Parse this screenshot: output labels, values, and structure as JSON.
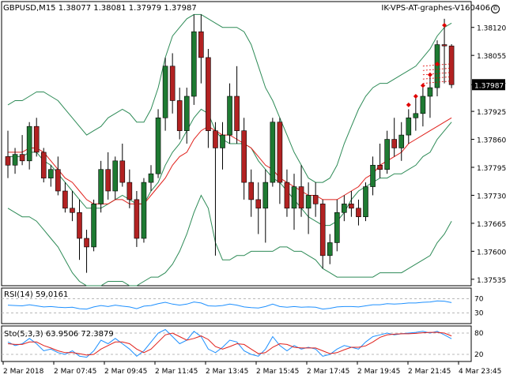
{
  "header": {
    "symbol": "GBPUSD,M15",
    "ohlc": "1.38077 1.38081 1.37979 1.37987",
    "brand": "IK-VPS-AT-graphes-V160406"
  },
  "colors": {
    "bull": "#1e7a32",
    "bear": "#b22222",
    "bollinger": "#2e8b57",
    "ma": "#e0201b",
    "rsi": "#1e90ff",
    "sto_main": "#1e90ff",
    "sto_signal": "#e0201b",
    "grid": "#b8b8b8",
    "marker": "#e00000"
  },
  "chart_data": [
    {
      "type": "candlestick",
      "title": "GBPUSD,M15",
      "price_labels": [
        "1.38120",
        "1.38055",
        "1.37987",
        "1.37925",
        "1.37860",
        "1.37795",
        "1.37730",
        "1.37665",
        "1.37600",
        "1.37535"
      ],
      "current_price": "1.37987",
      "ylim": [
        1.3752,
        1.3818
      ],
      "time_labels": [
        "2 Mar 2018",
        "2 Mar 07:45",
        "2 Mar 09:45",
        "2 Mar 11:45",
        "2 Mar 13:45",
        "2 Mar 15:45",
        "2 Mar 17:45",
        "2 Mar 19:45",
        "2 Mar 21:45",
        "4 Mar 23:45"
      ],
      "candles": [
        {
          "o": 1.3782,
          "h": 1.3788,
          "l": 1.3777,
          "c": 1.378
        },
        {
          "o": 1.378,
          "h": 1.3784,
          "l": 1.3778,
          "c": 1.37825
        },
        {
          "o": 1.37825,
          "h": 1.3787,
          "l": 1.378,
          "c": 1.3781
        },
        {
          "o": 1.3781,
          "h": 1.379,
          "l": 1.3779,
          "c": 1.3789
        },
        {
          "o": 1.3789,
          "h": 1.3791,
          "l": 1.3782,
          "c": 1.3783
        },
        {
          "o": 1.3783,
          "h": 1.3784,
          "l": 1.3776,
          "c": 1.3777
        },
        {
          "o": 1.3777,
          "h": 1.378,
          "l": 1.3775,
          "c": 1.3779
        },
        {
          "o": 1.3779,
          "h": 1.3782,
          "l": 1.3773,
          "c": 1.3774
        },
        {
          "o": 1.3774,
          "h": 1.3776,
          "l": 1.3769,
          "c": 1.377
        },
        {
          "o": 1.377,
          "h": 1.3774,
          "l": 1.3767,
          "c": 1.3769
        },
        {
          "o": 1.3769,
          "h": 1.3772,
          "l": 1.3758,
          "c": 1.3763
        },
        {
          "o": 1.3763,
          "h": 1.3765,
          "l": 1.3755,
          "c": 1.3761
        },
        {
          "o": 1.3761,
          "h": 1.3772,
          "l": 1.376,
          "c": 1.3771
        },
        {
          "o": 1.3771,
          "h": 1.3781,
          "l": 1.3769,
          "c": 1.3779
        },
        {
          "o": 1.3779,
          "h": 1.3783,
          "l": 1.3772,
          "c": 1.3774
        },
        {
          "o": 1.3774,
          "h": 1.3782,
          "l": 1.3772,
          "c": 1.3781
        },
        {
          "o": 1.3781,
          "h": 1.3785,
          "l": 1.3775,
          "c": 1.3776
        },
        {
          "o": 1.3776,
          "h": 1.3779,
          "l": 1.377,
          "c": 1.3772
        },
        {
          "o": 1.3772,
          "h": 1.3774,
          "l": 1.3761,
          "c": 1.3763
        },
        {
          "o": 1.3763,
          "h": 1.3777,
          "l": 1.3762,
          "c": 1.3776
        },
        {
          "o": 1.3776,
          "h": 1.378,
          "l": 1.3774,
          "c": 1.3778
        },
        {
          "o": 1.3778,
          "h": 1.3793,
          "l": 1.3777,
          "c": 1.3791
        },
        {
          "o": 1.3791,
          "h": 1.3805,
          "l": 1.3788,
          "c": 1.3803
        },
        {
          "o": 1.3803,
          "h": 1.3806,
          "l": 1.3792,
          "c": 1.3795
        },
        {
          "o": 1.3795,
          "h": 1.3798,
          "l": 1.3786,
          "c": 1.3788
        },
        {
          "o": 1.3788,
          "h": 1.3798,
          "l": 1.3785,
          "c": 1.3796
        },
        {
          "o": 1.3796,
          "h": 1.3815,
          "l": 1.3794,
          "c": 1.3811
        },
        {
          "o": 1.3811,
          "h": 1.3815,
          "l": 1.3799,
          "c": 1.3805
        },
        {
          "o": 1.3805,
          "h": 1.3807,
          "l": 1.3784,
          "c": 1.3788
        },
        {
          "o": 1.3788,
          "h": 1.379,
          "l": 1.3759,
          "c": 1.3784
        },
        {
          "o": 1.3784,
          "h": 1.379,
          "l": 1.3779,
          "c": 1.3787
        },
        {
          "o": 1.3787,
          "h": 1.3799,
          "l": 1.3785,
          "c": 1.3796
        },
        {
          "o": 1.3796,
          "h": 1.3803,
          "l": 1.3785,
          "c": 1.3788
        },
        {
          "o": 1.3788,
          "h": 1.3791,
          "l": 1.3772,
          "c": 1.3776
        },
        {
          "o": 1.3776,
          "h": 1.3779,
          "l": 1.3768,
          "c": 1.3772
        },
        {
          "o": 1.3772,
          "h": 1.3776,
          "l": 1.3764,
          "c": 1.377
        },
        {
          "o": 1.377,
          "h": 1.3779,
          "l": 1.3762,
          "c": 1.3776
        },
        {
          "o": 1.3776,
          "h": 1.3791,
          "l": 1.3775,
          "c": 1.379
        },
        {
          "o": 1.379,
          "h": 1.3791,
          "l": 1.3771,
          "c": 1.3776
        },
        {
          "o": 1.3776,
          "h": 1.3779,
          "l": 1.3768,
          "c": 1.377
        },
        {
          "o": 1.377,
          "h": 1.3778,
          "l": 1.3765,
          "c": 1.3775
        },
        {
          "o": 1.3775,
          "h": 1.378,
          "l": 1.3768,
          "c": 1.377
        },
        {
          "o": 1.377,
          "h": 1.3776,
          "l": 1.3764,
          "c": 1.3773
        },
        {
          "o": 1.3773,
          "h": 1.3776,
          "l": 1.3768,
          "c": 1.3771
        },
        {
          "o": 1.3771,
          "h": 1.3772,
          "l": 1.3756,
          "c": 1.3759
        },
        {
          "o": 1.3759,
          "h": 1.3764,
          "l": 1.3757,
          "c": 1.3762
        },
        {
          "o": 1.3762,
          "h": 1.3772,
          "l": 1.376,
          "c": 1.3769
        },
        {
          "o": 1.3769,
          "h": 1.3773,
          "l": 1.3767,
          "c": 1.3771
        },
        {
          "o": 1.3771,
          "h": 1.3774,
          "l": 1.3768,
          "c": 1.377
        },
        {
          "o": 1.377,
          "h": 1.3772,
          "l": 1.3766,
          "c": 1.3768
        },
        {
          "o": 1.3768,
          "h": 1.3776,
          "l": 1.3767,
          "c": 1.3775
        },
        {
          "o": 1.3775,
          "h": 1.3782,
          "l": 1.3773,
          "c": 1.378
        },
        {
          "o": 1.378,
          "h": 1.3785,
          "l": 1.3777,
          "c": 1.3779
        },
        {
          "o": 1.3779,
          "h": 1.3788,
          "l": 1.3778,
          "c": 1.3786
        },
        {
          "o": 1.3786,
          "h": 1.3791,
          "l": 1.3782,
          "c": 1.3784
        },
        {
          "o": 1.3784,
          "h": 1.379,
          "l": 1.3781,
          "c": 1.3787
        },
        {
          "o": 1.3787,
          "h": 1.3793,
          "l": 1.3785,
          "c": 1.3791
        },
        {
          "o": 1.3791,
          "h": 1.3796,
          "l": 1.3788,
          "c": 1.3792
        },
        {
          "o": 1.3792,
          "h": 1.3798,
          "l": 1.3789,
          "c": 1.3796
        },
        {
          "o": 1.3796,
          "h": 1.3801,
          "l": 1.3791,
          "c": 1.3798
        },
        {
          "o": 1.3798,
          "h": 1.3809,
          "l": 1.3796,
          "c": 1.3808
        },
        {
          "o": 1.3808,
          "h": 1.3814,
          "l": 1.3799,
          "c": 1.38077
        },
        {
          "o": 1.38077,
          "h": 1.38081,
          "l": 1.37979,
          "c": 1.37987
        }
      ],
      "bollinger_upper": [
        1.3794,
        1.3795,
        1.3795,
        1.3796,
        1.3797,
        1.3797,
        1.3796,
        1.3795,
        1.3793,
        1.3791,
        1.3789,
        1.3787,
        1.3788,
        1.3789,
        1.3791,
        1.3792,
        1.3793,
        1.3792,
        1.379,
        1.379,
        1.3793,
        1.3798,
        1.3805,
        1.381,
        1.3812,
        1.3814,
        1.3815,
        1.3815,
        1.3814,
        1.3813,
        1.3812,
        1.3812,
        1.3812,
        1.3811,
        1.3808,
        1.3803,
        1.3798,
        1.3795,
        1.3791,
        1.3787,
        1.3783,
        1.378,
        1.3777,
        1.3776,
        1.3776,
        1.3777,
        1.378,
        1.3785,
        1.3789,
        1.3793,
        1.3796,
        1.3798,
        1.3799,
        1.3799,
        1.38,
        1.3801,
        1.3802,
        1.3803,
        1.3805,
        1.3807,
        1.381,
        1.3812,
        1.3813
      ],
      "bollinger_lower": [
        1.377,
        1.3769,
        1.3768,
        1.3768,
        1.3767,
        1.3765,
        1.3763,
        1.3761,
        1.3758,
        1.3755,
        1.3753,
        1.3752,
        1.3752,
        1.3752,
        1.3753,
        1.3753,
        1.3753,
        1.3752,
        1.3752,
        1.3753,
        1.3754,
        1.3754,
        1.3755,
        1.3757,
        1.376,
        1.3764,
        1.3769,
        1.3773,
        1.377,
        1.3762,
        1.3758,
        1.3758,
        1.3759,
        1.3759,
        1.376,
        1.376,
        1.376,
        1.376,
        1.3761,
        1.3761,
        1.376,
        1.376,
        1.3759,
        1.3758,
        1.3756,
        1.3755,
        1.3754,
        1.3754,
        1.3754,
        1.3754,
        1.3754,
        1.3754,
        1.3755,
        1.3755,
        1.3755,
        1.3755,
        1.3756,
        1.3757,
        1.3758,
        1.3759,
        1.3762,
        1.3764,
        1.3767
      ],
      "bollinger_mid": [
        1.3782,
        1.3782,
        1.3782,
        1.3783,
        1.3783,
        1.3781,
        1.378,
        1.3778,
        1.3776,
        1.3774,
        1.3772,
        1.377,
        1.377,
        1.377,
        1.3771,
        1.3772,
        1.3773,
        1.3772,
        1.3771,
        1.3771,
        1.3774,
        1.3776,
        1.378,
        1.3783,
        1.3785,
        1.3788,
        1.3791,
        1.3793,
        1.3792,
        1.3788,
        1.3786,
        1.3785,
        1.3785,
        1.3785,
        1.3784,
        1.3781,
        1.3779,
        1.3777,
        1.3776,
        1.3774,
        1.3772,
        1.377,
        1.3768,
        1.3767,
        1.3766,
        1.3766,
        1.3767,
        1.3769,
        1.3772,
        1.3774,
        1.3775,
        1.3776,
        1.3777,
        1.3777,
        1.3778,
        1.3778,
        1.3779,
        1.378,
        1.3782,
        1.3783,
        1.3786,
        1.3788,
        1.379
      ],
      "ma": [
        1.3783,
        1.3783,
        1.3783,
        1.3784,
        1.3784,
        1.3783,
        1.3781,
        1.3779,
        1.3777,
        1.3776,
        1.3774,
        1.3772,
        1.3771,
        1.3771,
        1.3771,
        1.3772,
        1.3772,
        1.3771,
        1.3771,
        1.3771,
        1.3773,
        1.3775,
        1.3777,
        1.378,
        1.3782,
        1.3783,
        1.3786,
        1.3788,
        1.3789,
        1.3788,
        1.3787,
        1.3787,
        1.3786,
        1.3785,
        1.3784,
        1.3782,
        1.378,
        1.3779,
        1.3777,
        1.3776,
        1.3775,
        1.3774,
        1.3773,
        1.3773,
        1.3772,
        1.3772,
        1.3772,
        1.3773,
        1.3774,
        1.3775,
        1.3777,
        1.3778,
        1.378,
        1.3781,
        1.3782,
        1.3783,
        1.3785,
        1.3786,
        1.3787,
        1.3788,
        1.3789,
        1.379,
        1.3791
      ]
    },
    {
      "type": "line",
      "title": "RSI(14) 59,0161",
      "ylim": [
        0,
        100
      ],
      "levels": [
        "70",
        "30"
      ],
      "values": [
        52,
        51,
        50,
        53,
        50,
        47,
        48,
        46,
        45,
        46,
        42,
        41,
        47,
        51,
        48,
        52,
        49,
        47,
        42,
        49,
        51,
        56,
        60,
        55,
        52,
        55,
        61,
        58,
        50,
        49,
        51,
        55,
        52,
        47,
        45,
        44,
        48,
        55,
        48,
        46,
        48,
        46,
        47,
        46,
        41,
        43,
        47,
        48,
        48,
        47,
        50,
        53,
        53,
        56,
        55,
        56,
        58,
        58,
        60,
        61,
        64,
        63,
        59
      ]
    },
    {
      "type": "line",
      "title": "Sto(5,3,3) 63.9506 72.3879",
      "ylim": [
        0,
        100
      ],
      "levels": [
        "80",
        "20"
      ],
      "main": [
        55,
        45,
        50,
        65,
        50,
        30,
        35,
        25,
        20,
        30,
        15,
        12,
        30,
        60,
        50,
        65,
        50,
        35,
        15,
        30,
        55,
        80,
        90,
        70,
        50,
        60,
        85,
        70,
        35,
        25,
        40,
        60,
        55,
        30,
        20,
        15,
        35,
        70,
        45,
        30,
        45,
        35,
        40,
        35,
        15,
        20,
        35,
        45,
        40,
        35,
        55,
        70,
        75,
        80,
        75,
        78,
        80,
        82,
        85,
        80,
        85,
        75,
        64
      ],
      "signal": [
        50,
        48,
        48,
        55,
        55,
        45,
        38,
        30,
        25,
        25,
        22,
        18,
        20,
        35,
        45,
        55,
        55,
        50,
        35,
        25,
        35,
        55,
        75,
        80,
        70,
        60,
        65,
        72,
        62,
        42,
        35,
        42,
        50,
        48,
        35,
        22,
        25,
        40,
        50,
        48,
        40,
        38,
        38,
        38,
        30,
        22,
        25,
        33,
        40,
        40,
        44,
        55,
        68,
        75,
        77,
        78,
        78,
        79,
        81,
        82,
        82,
        80,
        72
      ]
    }
  ]
}
